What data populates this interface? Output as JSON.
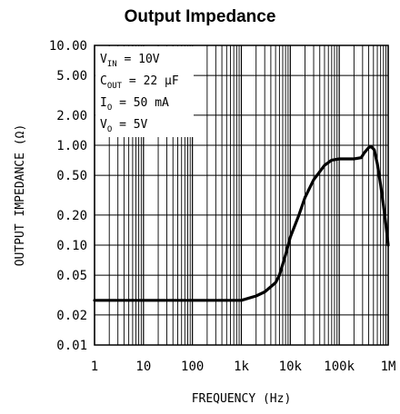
{
  "chart_data": {
    "type": "line",
    "title": "Output Impedance",
    "xlabel": "FREQUENCY (Hz)",
    "ylabel": "OUTPUT IMPEDANCE (Ω)",
    "x_scale": "log",
    "y_scale": "log",
    "xlim": [
      1,
      1000000
    ],
    "ylim": [
      0.01,
      10
    ],
    "grid": true,
    "x_ticks": [
      {
        "value": 1,
        "label": "1"
      },
      {
        "value": 10,
        "label": "10"
      },
      {
        "value": 100,
        "label": "100"
      },
      {
        "value": 1000,
        "label": "1k"
      },
      {
        "value": 10000,
        "label": "10k"
      },
      {
        "value": 100000,
        "label": "100k"
      },
      {
        "value": 1000000,
        "label": "1M"
      }
    ],
    "y_ticks": [
      {
        "value": 10,
        "label": "10.00"
      },
      {
        "value": 5,
        "label": "5.00"
      },
      {
        "value": 2,
        "label": "2.00"
      },
      {
        "value": 1,
        "label": "1.00"
      },
      {
        "value": 0.5,
        "label": "0.50"
      },
      {
        "value": 0.2,
        "label": "0.20"
      },
      {
        "value": 0.1,
        "label": "0.10"
      },
      {
        "value": 0.05,
        "label": "0.05"
      },
      {
        "value": 0.02,
        "label": "0.02"
      },
      {
        "value": 0.01,
        "label": "0.01"
      }
    ],
    "annotations": [
      {
        "main": "V",
        "sub": "IN",
        "rest": " = 10V"
      },
      {
        "main": "C",
        "sub": "OUT",
        "rest": " = 22 μF"
      },
      {
        "main": "I",
        "sub": "O",
        "rest": " = 50 mA"
      },
      {
        "main": "V",
        "sub": "O",
        "rest": " = 5V"
      }
    ],
    "series": [
      {
        "color": "#000000",
        "points": [
          [
            1,
            0.028
          ],
          [
            10,
            0.028
          ],
          [
            100,
            0.028
          ],
          [
            1000,
            0.028
          ],
          [
            2000,
            0.031
          ],
          [
            3000,
            0.034
          ],
          [
            5000,
            0.042
          ],
          [
            6000,
            0.05
          ],
          [
            8000,
            0.08
          ],
          [
            10000,
            0.12
          ],
          [
            15000,
            0.2
          ],
          [
            20000,
            0.3
          ],
          [
            30000,
            0.45
          ],
          [
            50000,
            0.63
          ],
          [
            70000,
            0.71
          ],
          [
            100000,
            0.73
          ],
          [
            150000,
            0.73
          ],
          [
            200000,
            0.73
          ],
          [
            280000,
            0.75
          ],
          [
            330000,
            0.85
          ],
          [
            400000,
            0.95
          ],
          [
            450000,
            0.97
          ],
          [
            520000,
            0.9
          ],
          [
            600000,
            0.65
          ],
          [
            700000,
            0.4
          ],
          [
            800000,
            0.25
          ],
          [
            900000,
            0.16
          ],
          [
            1000000,
            0.1
          ]
        ]
      }
    ]
  }
}
